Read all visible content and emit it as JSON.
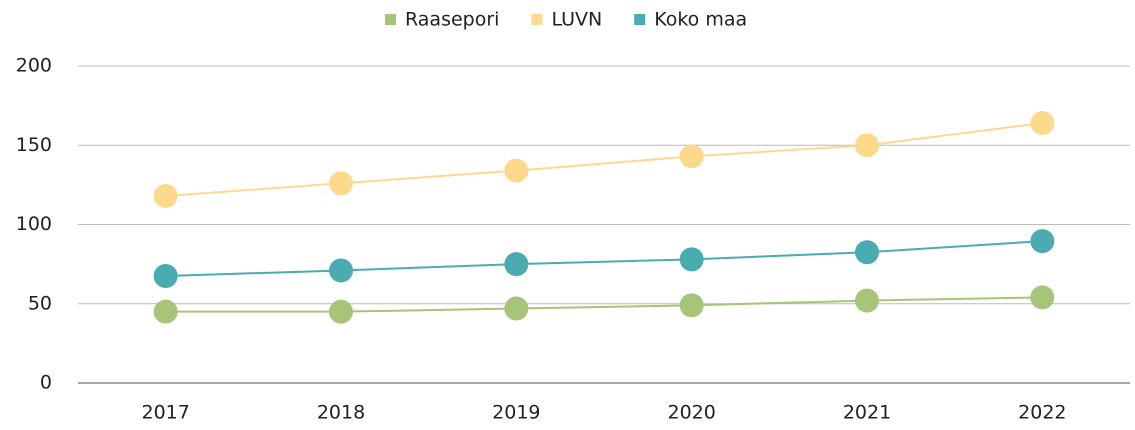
{
  "chart_data": {
    "type": "line",
    "categories": [
      "2017",
      "2018",
      "2019",
      "2020",
      "2021",
      "2022"
    ],
    "series": [
      {
        "name": "Raasepori",
        "color": "#a7c47a",
        "values": [
          45,
          45,
          47,
          49,
          52,
          54
        ]
      },
      {
        "name": "LUVN",
        "color": "#fdd98c",
        "values": [
          118,
          126,
          134,
          143,
          150,
          164
        ]
      },
      {
        "name": "Koko maa",
        "color": "#4aabb0",
        "values": [
          67.5,
          71,
          75,
          78,
          82.5,
          89.5
        ]
      }
    ],
    "ylim": [
      0,
      200
    ],
    "yticks": [
      0,
      50,
      100,
      150,
      200
    ],
    "grid": true,
    "legend": "top"
  }
}
